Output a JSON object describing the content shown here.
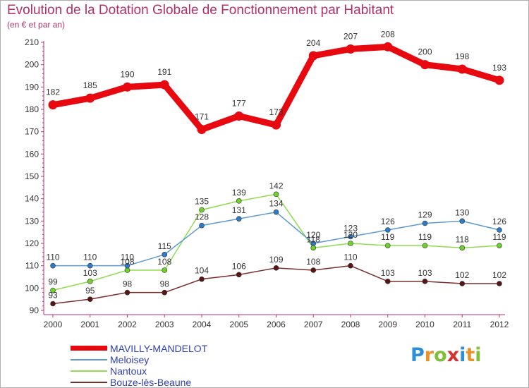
{
  "header": {
    "title": "Evolution de la Dotation Globale de Fonctionnement par Habitant",
    "subtitle": "(en € et par an)"
  },
  "logo": {
    "letters": [
      "P",
      "r",
      "o",
      "x",
      "i",
      "t",
      "i"
    ],
    "colors": [
      "#2e8fd8",
      "#e8922a",
      "#7fbf3a",
      "#d83030",
      "#2e8fd8",
      "#e8922a",
      "#7fbf3a"
    ]
  },
  "chart_data": {
    "type": "line",
    "title": "Evolution de la Dotation Globale de Fonctionnement par Habitant",
    "ylabel": "(en € et par an)",
    "xlabel": "",
    "ylim": [
      90,
      210
    ],
    "yticks": [
      90,
      100,
      110,
      120,
      130,
      140,
      150,
      160,
      170,
      180,
      190,
      200,
      210
    ],
    "grid": false,
    "categories": [
      "2000",
      "2001",
      "2002",
      "2003",
      "2004",
      "2005",
      "2006",
      "2007",
      "2008",
      "2009",
      "2010",
      "2011",
      "2012"
    ],
    "series": [
      {
        "name": "MAVILLY-MANDELOT",
        "color": "#e8080f",
        "marker": "#e8080f",
        "thick": true,
        "values": [
          182,
          185,
          190,
          191,
          171,
          177,
          173,
          204,
          207,
          208,
          200,
          198,
          193
        ]
      },
      {
        "name": "Meloisey",
        "color": "#5d9ad0",
        "marker": "#2e7bc6",
        "thick": false,
        "values": [
          110,
          110,
          110,
          115,
          128,
          131,
          134,
          120,
          123,
          126,
          129,
          130,
          126
        ]
      },
      {
        "name": "Nantoux",
        "color": "#8fdc4f",
        "marker": "#6fd22a",
        "thick": false,
        "values": [
          99,
          103,
          108,
          108,
          135,
          139,
          142,
          118,
          120,
          119,
          119,
          118,
          119
        ]
      },
      {
        "name": "Bouze-lès-Beaune",
        "color": "#7a2e2e",
        "marker": "#5a1414",
        "thick": false,
        "values": [
          93,
          95,
          98,
          98,
          104,
          106,
          109,
          108,
          110,
          103,
          103,
          102,
          102
        ]
      }
    ]
  }
}
